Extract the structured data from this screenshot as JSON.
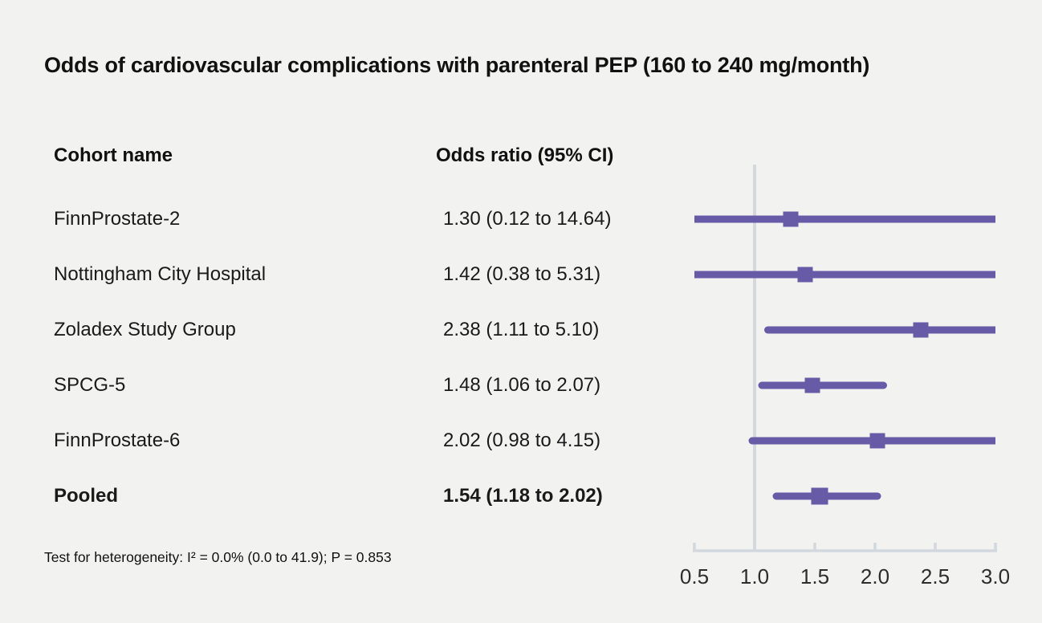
{
  "title": "Odds of cardiovascular complications with parenteral PEP (160 to 240 mg/month)",
  "table": {
    "cohort_header": "Cohort name",
    "or_header": "Odds ratio (95% CI)"
  },
  "footnote": "Test for heterogeneity: I² = 0.0% (0.0 to 41.9); P = 0.853",
  "colors": {
    "accent": "#675aa6",
    "axis_gray": "#d3d7de",
    "background": "#f2f2f1",
    "text": "#1a1a1a",
    "tick_label": "#2d2d2d"
  },
  "chart_data": {
    "type": "forest",
    "scale": "linear",
    "xlim": [
      0.5,
      3.0
    ],
    "x_ticks": [
      0.5,
      1.0,
      1.5,
      2.0,
      2.5,
      3.0
    ],
    "x_tick_labels": [
      "0.5",
      "1.0",
      "1.5",
      "2.0",
      "2.5",
      "3.0"
    ],
    "reference_line": 1.0,
    "legend": "none",
    "grid": "off",
    "rows": [
      {
        "label": "FinnProstate-2",
        "or_text": "1.30 (0.12 to 14.64)",
        "or": 1.3,
        "ci_low": 0.12,
        "ci_high": 14.64,
        "pooled": false
      },
      {
        "label": "Nottingham City Hospital",
        "or_text": "1.42 (0.38 to 5.31)",
        "or": 1.42,
        "ci_low": 0.38,
        "ci_high": 5.31,
        "pooled": false
      },
      {
        "label": "Zoladex Study Group",
        "or_text": "2.38 (1.11 to 5.10)",
        "or": 2.38,
        "ci_low": 1.11,
        "ci_high": 5.1,
        "pooled": false
      },
      {
        "label": "SPCG-5",
        "or_text": "1.48 (1.06 to 2.07)",
        "or": 1.48,
        "ci_low": 1.06,
        "ci_high": 2.07,
        "pooled": false
      },
      {
        "label": "FinnProstate-6",
        "or_text": "2.02 (0.98 to 4.15)",
        "or": 2.02,
        "ci_low": 0.98,
        "ci_high": 4.15,
        "pooled": false
      },
      {
        "label": "Pooled",
        "or_text": "1.54 (1.18 to 2.02)",
        "or": 1.54,
        "ci_low": 1.18,
        "ci_high": 2.02,
        "pooled": true
      }
    ]
  }
}
